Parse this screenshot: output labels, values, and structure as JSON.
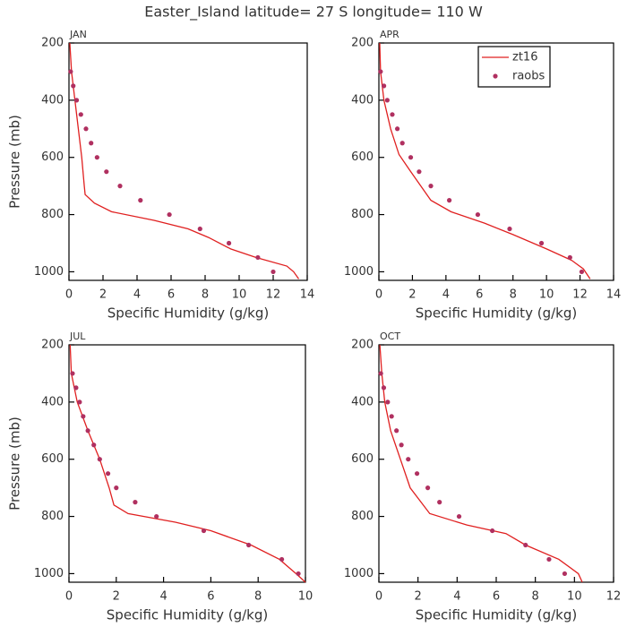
{
  "title": "Easter_Island  latitude= 27 S longitude= 110 W",
  "chart_data": [
    {
      "type": "line",
      "title": "JAN",
      "xlabel": "Specific Humidity (g/kg)",
      "ylabel": "Pressure (mb)",
      "xlim": [
        0,
        14
      ],
      "xticks": [
        0,
        2,
        4,
        6,
        8,
        10,
        12,
        14
      ],
      "ylim": [
        1030,
        200
      ],
      "yticks": [
        200,
        400,
        600,
        800,
        1000
      ],
      "legend": false,
      "series": [
        {
          "name": "zt16",
          "style": "line",
          "color": "#e02020",
          "x": [
            0.05,
            0.15,
            0.35,
            0.55,
            0.75,
            0.9,
            0.95,
            1.5,
            2.5,
            5,
            7,
            8.2,
            9.5,
            11,
            12.8,
            13.2,
            13.5
          ],
          "y": [
            200,
            300,
            400,
            500,
            600,
            700,
            730,
            760,
            790,
            820,
            850,
            880,
            920,
            950,
            980,
            1000,
            1025
          ]
        },
        {
          "name": "raobs",
          "style": "points",
          "color": "#b03060",
          "x": [
            0.1,
            0.25,
            0.45,
            0.7,
            1.0,
            1.3,
            1.65,
            2.2,
            3.0,
            4.2,
            5.9,
            7.7,
            9.4,
            11.1,
            12.0
          ],
          "y": [
            300,
            350,
            400,
            450,
            500,
            550,
            600,
            650,
            700,
            750,
            800,
            850,
            900,
            950,
            1000
          ]
        }
      ]
    },
    {
      "type": "line",
      "title": "APR",
      "xlabel": "Specific Humidity (g/kg)",
      "xlim": [
        0,
        14
      ],
      "xticks": [
        0,
        2,
        4,
        6,
        8,
        10,
        12,
        14
      ],
      "ylim": [
        1030,
        200
      ],
      "yticks": [
        200,
        400,
        600,
        800,
        1000
      ],
      "legend": true,
      "series": [
        {
          "name": "zt16",
          "style": "line",
          "color": "#e02020",
          "x": [
            0.05,
            0.1,
            0.3,
            0.7,
            1.2,
            1.9,
            2.5,
            3.1,
            4.3,
            6.3,
            8.0,
            10.0,
            11.5,
            12.2,
            12.6
          ],
          "y": [
            200,
            300,
            400,
            500,
            590,
            650,
            700,
            750,
            790,
            830,
            870,
            920,
            960,
            990,
            1025
          ]
        },
        {
          "name": "raobs",
          "style": "points",
          "color": "#b03060",
          "x": [
            0.1,
            0.3,
            0.5,
            0.8,
            1.1,
            1.4,
            1.9,
            2.4,
            3.1,
            4.2,
            5.9,
            7.8,
            9.7,
            11.4,
            12.1
          ],
          "y": [
            300,
            350,
            400,
            450,
            500,
            550,
            600,
            650,
            700,
            750,
            800,
            850,
            900,
            950,
            1000
          ]
        }
      ]
    },
    {
      "type": "line",
      "title": "JUL",
      "xlabel": "Specific Humidity (g/kg)",
      "ylabel": "Pressure (mb)",
      "xlim": [
        0,
        10
      ],
      "xticks": [
        0,
        2,
        4,
        6,
        8,
        10
      ],
      "ylim": [
        1030,
        200
      ],
      "yticks": [
        200,
        400,
        600,
        800,
        1000
      ],
      "legend": false,
      "series": [
        {
          "name": "zt16",
          "style": "line",
          "color": "#e02020",
          "x": [
            0.05,
            0.1,
            0.35,
            0.8,
            1.3,
            1.7,
            1.9,
            2.5,
            4.5,
            6,
            7.7,
            8.9,
            9.6,
            10
          ],
          "y": [
            200,
            300,
            400,
            500,
            600,
            700,
            760,
            790,
            820,
            850,
            900,
            950,
            1000,
            1030
          ]
        },
        {
          "name": "raobs",
          "style": "points",
          "color": "#b03060",
          "x": [
            0.15,
            0.3,
            0.45,
            0.6,
            0.8,
            1.05,
            1.3,
            1.65,
            2.0,
            2.8,
            3.7,
            5.7,
            7.6,
            9.0,
            9.7
          ],
          "y": [
            300,
            350,
            400,
            450,
            500,
            550,
            600,
            650,
            700,
            750,
            800,
            850,
            900,
            950,
            1000
          ]
        }
      ]
    },
    {
      "type": "line",
      "title": "OCT",
      "xlabel": "Specific Humidity (g/kg)",
      "xlim": [
        0,
        12
      ],
      "xticks": [
        0,
        2,
        4,
        6,
        8,
        10,
        12
      ],
      "ylim": [
        1030,
        200
      ],
      "yticks": [
        200,
        400,
        600,
        800,
        1000
      ],
      "legend": false,
      "series": [
        {
          "name": "zt16",
          "style": "line",
          "color": "#e02020",
          "x": [
            0.05,
            0.15,
            0.3,
            0.6,
            1.1,
            1.6,
            2.6,
            4.5,
            6.5,
            7.5,
            9.2,
            10.2,
            10.4
          ],
          "y": [
            200,
            300,
            400,
            500,
            600,
            700,
            790,
            830,
            860,
            900,
            950,
            1000,
            1030
          ]
        },
        {
          "name": "raobs",
          "style": "points",
          "color": "#b03060",
          "x": [
            0.1,
            0.25,
            0.45,
            0.65,
            0.9,
            1.15,
            1.5,
            1.95,
            2.5,
            3.1,
            4.1,
            5.8,
            7.5,
            8.7,
            9.5
          ],
          "y": [
            300,
            350,
            400,
            450,
            500,
            550,
            600,
            650,
            700,
            750,
            800,
            850,
            900,
            950,
            1000
          ]
        }
      ]
    }
  ]
}
